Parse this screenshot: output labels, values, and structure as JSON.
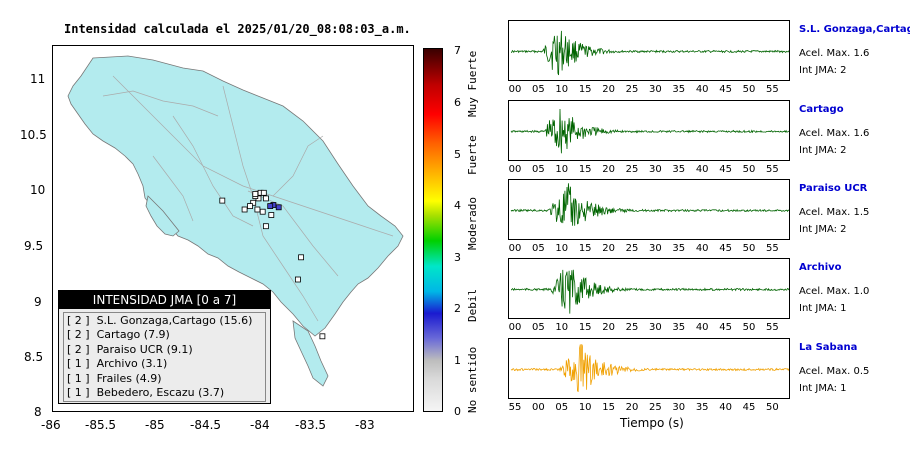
{
  "map": {
    "title": "Intensidad calculada el 2025/01/20_08:08:03_a.m.",
    "x_ticks": [
      "-86",
      "-85.5",
      "-85",
      "-84.5",
      "-84",
      "-83.5",
      "-83"
    ],
    "y_ticks": [
      "11",
      "10.5",
      "10",
      "9.5",
      "9",
      "8.5",
      "8"
    ],
    "land_color": "#b3ebee",
    "stations": [
      {
        "lon": -83.93,
        "lat": 9.87,
        "intensity": 2
      },
      {
        "lon": -83.96,
        "lat": 9.86,
        "intensity": 2
      },
      {
        "lon": -83.88,
        "lat": 9.85,
        "intensity": 2
      },
      {
        "lon": -84.0,
        "lat": 9.93,
        "intensity": 1
      },
      {
        "lon": -84.07,
        "lat": 9.93,
        "intensity": 1
      },
      {
        "lon": -84.1,
        "lat": 9.95,
        "intensity": 1
      },
      {
        "lon": -84.12,
        "lat": 9.89,
        "intensity": 1
      },
      {
        "lon": -84.05,
        "lat": 9.98,
        "intensity": 1
      },
      {
        "lon": -84.02,
        "lat": 9.98,
        "intensity": 1
      },
      {
        "lon": -84.15,
        "lat": 9.86,
        "intensity": 1
      },
      {
        "lon": -84.08,
        "lat": 9.83,
        "intensity": 1
      },
      {
        "lon": -84.03,
        "lat": 9.81,
        "intensity": 1
      },
      {
        "lon": -83.95,
        "lat": 9.78,
        "intensity": 1
      },
      {
        "lon": -84.2,
        "lat": 9.83,
        "intensity": 1
      },
      {
        "lon": -84.41,
        "lat": 9.91,
        "intensity": 1
      },
      {
        "lon": -84.0,
        "lat": 9.68,
        "intensity": 1
      },
      {
        "lon": -83.67,
        "lat": 9.4,
        "intensity": 1
      },
      {
        "lon": -83.7,
        "lat": 9.2,
        "intensity": 1
      },
      {
        "lon": -83.47,
        "lat": 8.69,
        "intensity": 1
      },
      {
        "lon": -84.1,
        "lat": 9.97,
        "intensity": 1
      }
    ]
  },
  "legend": {
    "header": "INTENSIDAD JMA [0 a 7]",
    "rows": [
      {
        "label": "[ 2 ]  S.L. Gonzaga,Cartago (15.6)"
      },
      {
        "label": "[ 2 ]  Cartago (7.9)"
      },
      {
        "label": "[ 2 ]  Paraiso UCR (9.1)"
      },
      {
        "label": "[ 1 ]  Archivo (3.1)"
      },
      {
        "label": "[ 1 ]  Frailes (4.9)"
      },
      {
        "label": "[ 1 ]  Bebedero, Escazu (3.7)"
      }
    ]
  },
  "colorbar": {
    "ticks": [
      "0",
      "1",
      "2",
      "3",
      "4",
      "5",
      "6",
      "7"
    ],
    "categories": [
      "No sentido",
      "Debil",
      "Moderado",
      "Fuerte",
      "Muy Fuerte"
    ]
  },
  "traces": [
    {
      "name": "S.L. Gonzaga,Cartago",
      "acel_label": "Acel. Max. 1.6",
      "jma_label": "Int JMA: 2",
      "color": "#006400",
      "ticks": [
        "00",
        "05",
        "10",
        "15",
        "20",
        "25",
        "30",
        "35",
        "40",
        "45",
        "50",
        "55"
      ],
      "onset": 0.12,
      "peak": 0.17
    },
    {
      "name": "Cartago",
      "acel_label": "Acel. Max. 1.6",
      "jma_label": "Int JMA: 2",
      "color": "#006400",
      "ticks": [
        "00",
        "05",
        "10",
        "15",
        "20",
        "25",
        "30",
        "35",
        "40",
        "45",
        "50",
        "55"
      ],
      "onset": 0.12,
      "peak": 0.18
    },
    {
      "name": "Paraiso UCR",
      "acel_label": "Acel. Max. 1.5",
      "jma_label": "Int JMA: 2",
      "color": "#006400",
      "ticks": [
        "00",
        "05",
        "10",
        "15",
        "20",
        "25",
        "30",
        "35",
        "40",
        "45",
        "50",
        "55"
      ],
      "onset": 0.14,
      "peak": 0.21
    },
    {
      "name": "Archivo",
      "acel_label": "Acel. Max. 1.0",
      "jma_label": "Int JMA: 1",
      "color": "#006400",
      "ticks": [
        "00",
        "05",
        "10",
        "15",
        "20",
        "25",
        "30",
        "35",
        "40",
        "45",
        "50",
        "55"
      ],
      "onset": 0.15,
      "peak": 0.21
    },
    {
      "name": "La Sabana",
      "acel_label": "Acel. Max. 0.5",
      "jma_label": "Int JMA: 1",
      "color": "#f0a000",
      "ticks": [
        "55",
        "00",
        "05",
        "10",
        "15",
        "20",
        "25",
        "30",
        "35",
        "40",
        "45",
        "50"
      ],
      "onset": 0.18,
      "peak": 0.26
    }
  ],
  "time_axis_label": "Tiempo (s)"
}
